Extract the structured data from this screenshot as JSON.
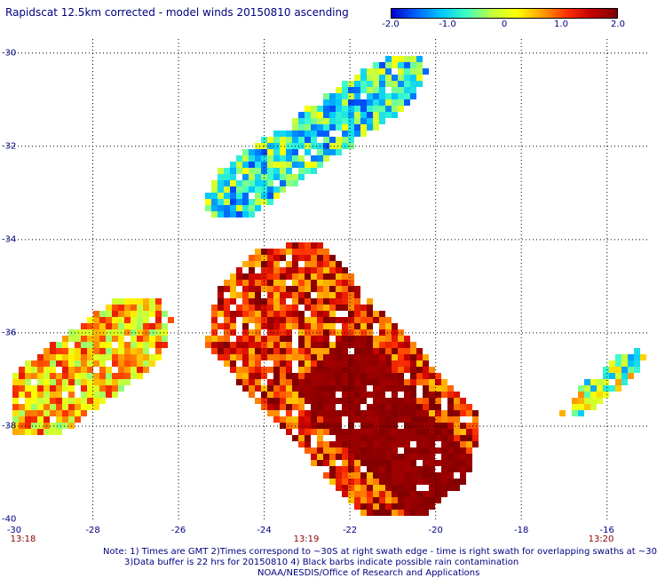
{
  "title": "Rapidscat 12.5km corrected - model winds 20150810 ascending",
  "colorbar": {
    "labels": [
      "-2.0",
      "-1.0",
      "0",
      "1.0",
      "2.0"
    ],
    "min": -2.0,
    "max": 2.0,
    "colors": [
      "#0000c8",
      "#0064ff",
      "#00c8ff",
      "#40ffc0",
      "#c0ff40",
      "#ffff00",
      "#ffa000",
      "#ff3000",
      "#c00000",
      "#800000"
    ]
  },
  "axes": {
    "lon_range": [
      -30,
      -15
    ],
    "lat_range": [
      -40,
      -29.7
    ],
    "x_ticks": [
      "-30",
      "-28",
      "-26",
      "-24",
      "-22",
      "-20",
      "-18",
      "-16"
    ],
    "y_ticks": [
      "-30",
      "-32",
      "-34",
      "-36",
      "-38",
      "-40"
    ],
    "grid": "dotted"
  },
  "times": [
    "13:18",
    "13:19",
    "13:20"
  ],
  "notes": [
    "Note: 1) Times are GMT 2)Times correspond to ~30S at right swath edge - time is right swath for overlapping swaths at ~30S",
    "3)Data buffer is 22 hrs for 20150810 4) Black barbs indicate possible rain contamination",
    "NOAA/NESDIS/Office of Research and Applications"
  ],
  "swaths": [
    {
      "name": "upper-swath",
      "lon": [
        -25.3,
        -20.3
      ],
      "lat": [
        -33.4,
        -30.2
      ],
      "width_deg": 1.3,
      "mean": -0.7,
      "spread": 1.0
    },
    {
      "name": "center-swath",
      "lon": [
        -24.6,
        -19.7
      ],
      "lat": [
        -34.6,
        -39.5
      ],
      "width_deg": 3.6,
      "mean": 1.4,
      "spread": 0.8
    },
    {
      "name": "left-swath",
      "lon": [
        -30.0,
        -26.3
      ],
      "lat": [
        -38.0,
        -35.5
      ],
      "width_deg": 1.8,
      "mean": 0.6,
      "spread": 0.9
    },
    {
      "name": "right-swath",
      "lon": [
        -17.0,
        -15.0
      ],
      "lat": [
        -37.8,
        -36.3
      ],
      "width_deg": 0.6,
      "mean": -0.2,
      "spread": 1.1
    }
  ]
}
